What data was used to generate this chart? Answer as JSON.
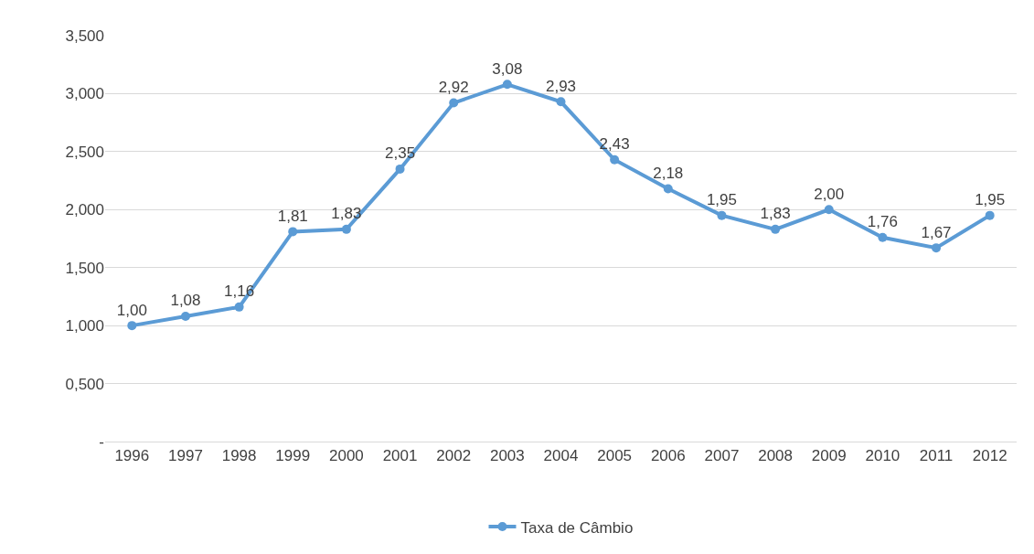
{
  "chart_data": {
    "type": "line",
    "categories": [
      "1996",
      "1997",
      "1998",
      "1999",
      "2000",
      "2001",
      "2002",
      "2003",
      "2004",
      "2005",
      "2006",
      "2007",
      "2008",
      "2009",
      "2010",
      "2011",
      "2012"
    ],
    "series": [
      {
        "name": "Taxa de Câmbio",
        "color": "#5b9bd5",
        "values": [
          1.0,
          1.08,
          1.16,
          1.81,
          1.83,
          2.35,
          2.92,
          3.08,
          2.93,
          2.43,
          2.18,
          1.95,
          1.83,
          2.0,
          1.76,
          1.67,
          1.95
        ],
        "value_labels": [
          "1,00",
          "1,08",
          "1,16",
          "1,81",
          "1,83",
          "2,35",
          "2,92",
          "3,08",
          "2,93",
          "2,43",
          "2,18",
          "1,95",
          "1,83",
          "2,00",
          "1,76",
          "1,67",
          "1,95"
        ]
      }
    ],
    "ylim": [
      0,
      3.5
    ],
    "yticks": [
      {
        "value": 0,
        "label": "-"
      },
      {
        "value": 0.5,
        "label": "0,500"
      },
      {
        "value": 1,
        "label": "1,000"
      },
      {
        "value": 1.5,
        "label": "1,500"
      },
      {
        "value": 2,
        "label": "2,000"
      },
      {
        "value": 2.5,
        "label": "2,500"
      },
      {
        "value": 3,
        "label": "3,000"
      },
      {
        "value": 3.5,
        "label": "3,500"
      }
    ],
    "grid": "y",
    "legend": "bottom",
    "marker": "circle",
    "line_style": "solid"
  }
}
